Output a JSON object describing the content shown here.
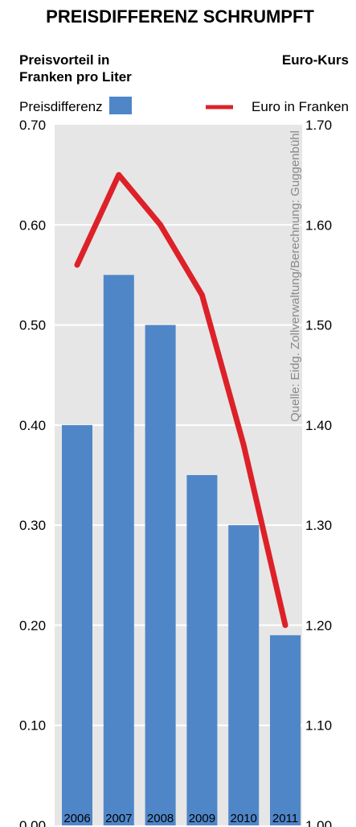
{
  "chart_data": {
    "type": "bar",
    "title": "PREISDIFFERENZ SCHRUMPFT",
    "left_axis_title_lines": [
      "Preisvorteil in",
      "Franken pro Liter"
    ],
    "right_axis_title": "Euro-Kurs",
    "legend_bar_label": "Preisdifferenz",
    "legend_line_label": "Euro in Franken",
    "source": "Quelle: Eidg. Zollverwaltung/Berechnung: Guggenbühl",
    "categories": [
      "2006",
      "2007",
      "2008",
      "2009",
      "2010",
      "2011"
    ],
    "series": [
      {
        "name": "Preisdifferenz",
        "type": "bar",
        "axis": "left",
        "values": [
          0.4,
          0.55,
          0.5,
          0.35,
          0.3,
          0.19
        ]
      },
      {
        "name": "Euro in Franken",
        "type": "line",
        "axis": "right",
        "values": [
          1.56,
          1.65,
          1.6,
          1.53,
          1.38,
          1.2
        ]
      }
    ],
    "ylim_left": [
      0.0,
      0.7
    ],
    "ylim_right": [
      1.0,
      1.7
    ],
    "yticks_left": [
      "0.00",
      "0.10",
      "0.20",
      "0.30",
      "0.40",
      "0.50",
      "0.60",
      "0.70"
    ],
    "yticks_right": [
      "1.00",
      "1.10",
      "1.20",
      "1.30",
      "1.40",
      "1.50",
      "1.60",
      "1.70"
    ],
    "grid": true,
    "colors": {
      "bar": "#4f86c8",
      "line": "#dd2128",
      "plot_bg": "#e6e6e6",
      "grid": "#ffffff"
    }
  }
}
